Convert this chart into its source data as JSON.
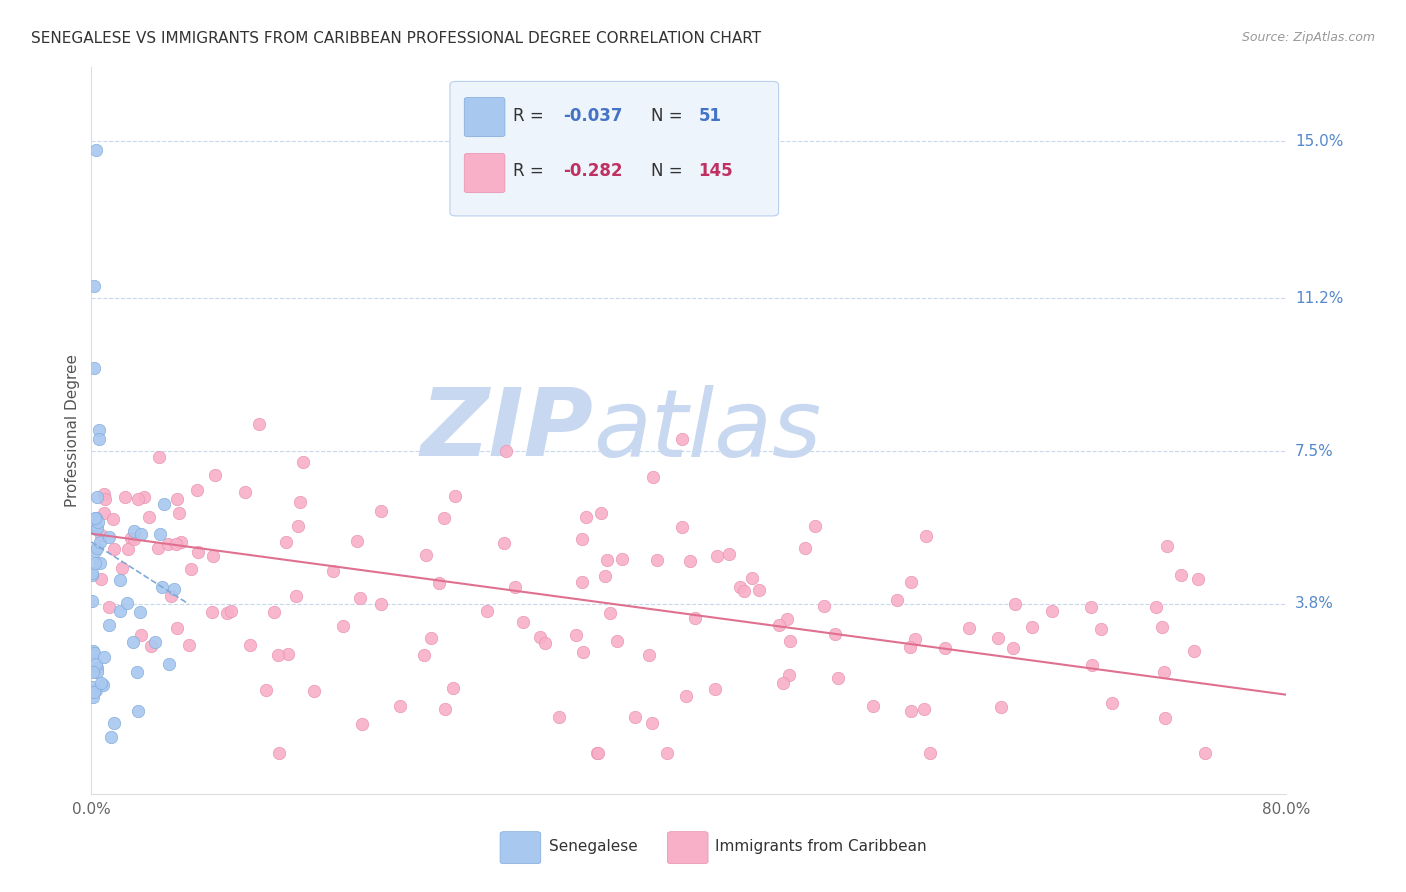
{
  "title": "SENEGALESE VS IMMIGRANTS FROM CARIBBEAN PROFESSIONAL DEGREE CORRELATION CHART",
  "source": "Source: ZipAtlas.com",
  "ylabel": "Professional Degree",
  "ytick_labels": [
    "3.8%",
    "7.5%",
    "11.2%",
    "15.0%"
  ],
  "ytick_values": [
    0.038,
    0.075,
    0.112,
    0.15
  ],
  "xlim": [
    0.0,
    0.8
  ],
  "ylim": [
    -0.008,
    0.168
  ],
  "series1_color": "#a8c8f0",
  "series1_edge": "#80aad8",
  "series1_label": "Senegalese",
  "series1_R": -0.037,
  "series1_N": 51,
  "series2_color": "#f8b0c8",
  "series2_edge": "#e890b0",
  "series2_label": "Immigrants from Caribbean",
  "series2_R": -0.282,
  "series2_N": 145,
  "trendline1_color": "#80aad8",
  "trendline2_color": "#e07090",
  "legend_box_color": "#edf4fc",
  "legend_border_color": "#b8d0ee",
  "watermark_zip_color": "#c8d8f0",
  "watermark_atlas_color": "#c8d8f0",
  "grid_color": "#c8d8ee",
  "background_color": "#ffffff",
  "title_fontsize": 11,
  "axis_label_fontsize": 11,
  "tick_fontsize": 11,
  "marker_size": 80
}
